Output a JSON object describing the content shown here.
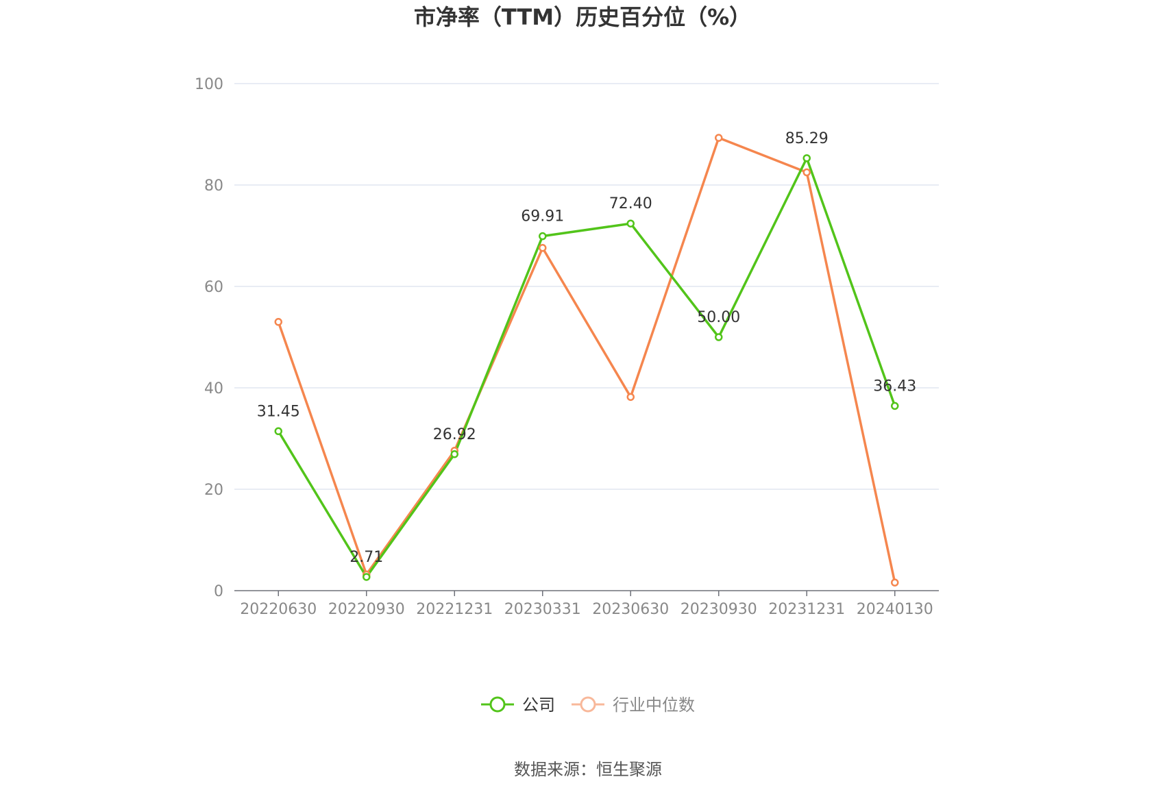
{
  "chart_data": {
    "type": "line",
    "title": "市净率（TTM）历史百分位（%）",
    "categories": [
      "20220630",
      "20220930",
      "20221231",
      "20230331",
      "20230630",
      "20230930",
      "20231231",
      "20240130"
    ],
    "ylim": [
      0,
      100
    ],
    "yticks": [
      0,
      20,
      40,
      60,
      80,
      100
    ],
    "grid": true,
    "legend_position": "bottom-center",
    "series": [
      {
        "name": "公司",
        "color": "#52c41a",
        "values": [
          31.45,
          2.71,
          26.92,
          69.91,
          72.4,
          50.0,
          85.29,
          36.43
        ],
        "labels": [
          "31.45",
          "2.71",
          "26.92",
          "69.91",
          "72.40",
          "50.00",
          "85.29",
          "36.43"
        ],
        "show_labels": true
      },
      {
        "name": "行业中位数",
        "color": "#f5864e",
        "values": [
          53.0,
          3.2,
          27.6,
          67.6,
          38.2,
          89.3,
          82.5,
          1.6
        ],
        "show_labels": false
      }
    ],
    "legend_colors": {
      "company": "#52c41a",
      "industry": "#f8b89a"
    },
    "source": "数据来源：恒生聚源"
  }
}
